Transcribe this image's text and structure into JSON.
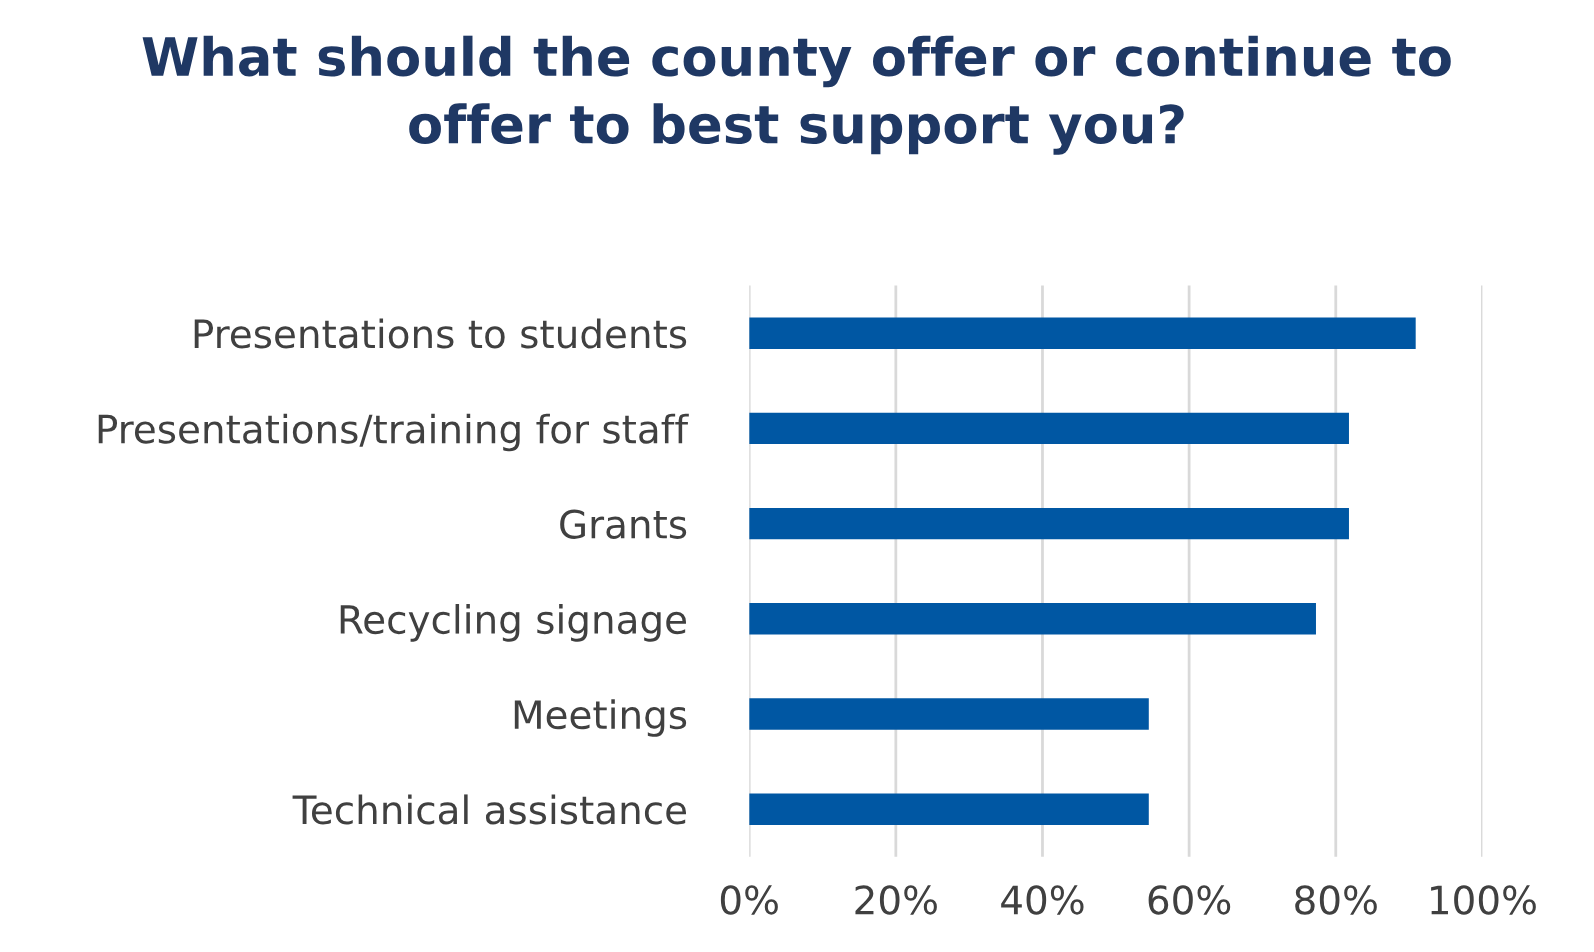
{
  "chart_data": {
    "type": "bar",
    "orientation": "horizontal",
    "title": "What should the county offer or continue to\noffer to best support you?",
    "categories": [
      "Presentations to students",
      "Presentations/training for staff",
      "Grants",
      "Recycling signage",
      "Meetings",
      "Technical assistance"
    ],
    "values": [
      90.9,
      81.8,
      81.8,
      77.3,
      54.5,
      54.5
    ],
    "color": "#0057a3",
    "xlim": [
      0,
      100
    ],
    "xticks": [
      {
        "value": 0,
        "label": "0%"
      },
      {
        "value": 20,
        "label": "20%"
      },
      {
        "value": 40,
        "label": "40%"
      },
      {
        "value": 60,
        "label": "60%"
      },
      {
        "value": 80,
        "label": "80%"
      },
      {
        "value": 100,
        "label": "100%"
      }
    ],
    "grid": "x",
    "legend": false
  }
}
